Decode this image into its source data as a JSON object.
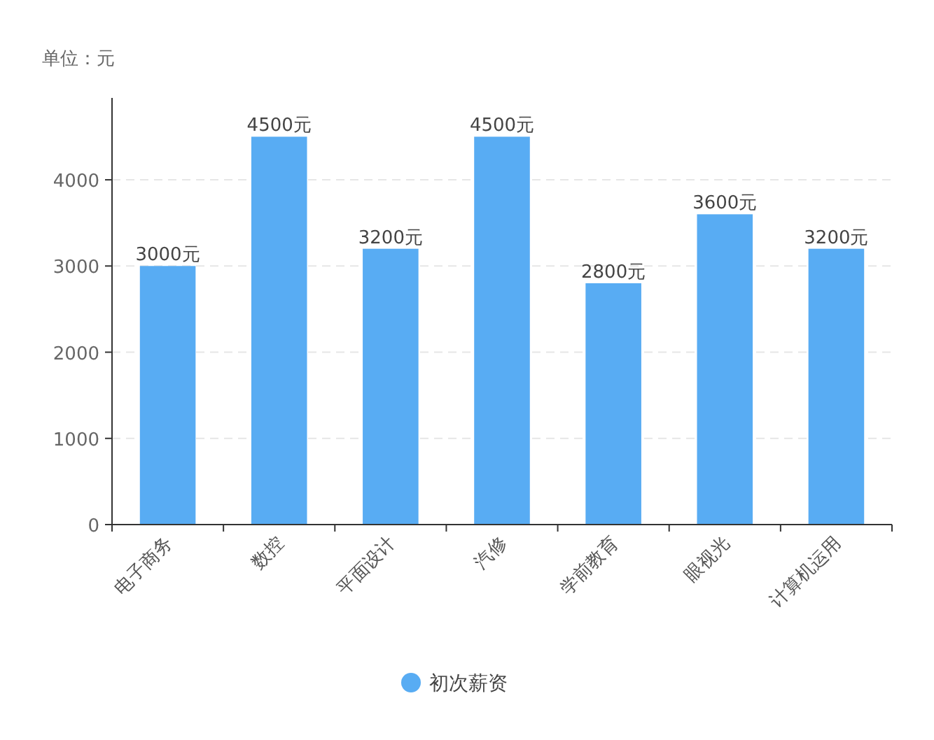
{
  "chart_data": {
    "type": "bar",
    "ylabel": "单位：元",
    "categories": [
      "电子商务",
      "数控",
      "平面设计",
      "汽修",
      "学前教育",
      "眼视光",
      "计算机运用"
    ],
    "series": [
      {
        "name": "初次薪资",
        "color": "#58acf3",
        "values": [
          3000,
          4500,
          3200,
          4500,
          2800,
          3600,
          3200
        ],
        "value_labels": [
          "3000元",
          "4500元",
          "3200元",
          "4500元",
          "2800元",
          "3600元",
          "3200元"
        ]
      }
    ],
    "ylim": [
      0,
      4950
    ],
    "yticks": [
      0,
      1000,
      2000,
      3000,
      4000
    ],
    "grid": "y",
    "legend": "bottom",
    "marker": "circle"
  }
}
